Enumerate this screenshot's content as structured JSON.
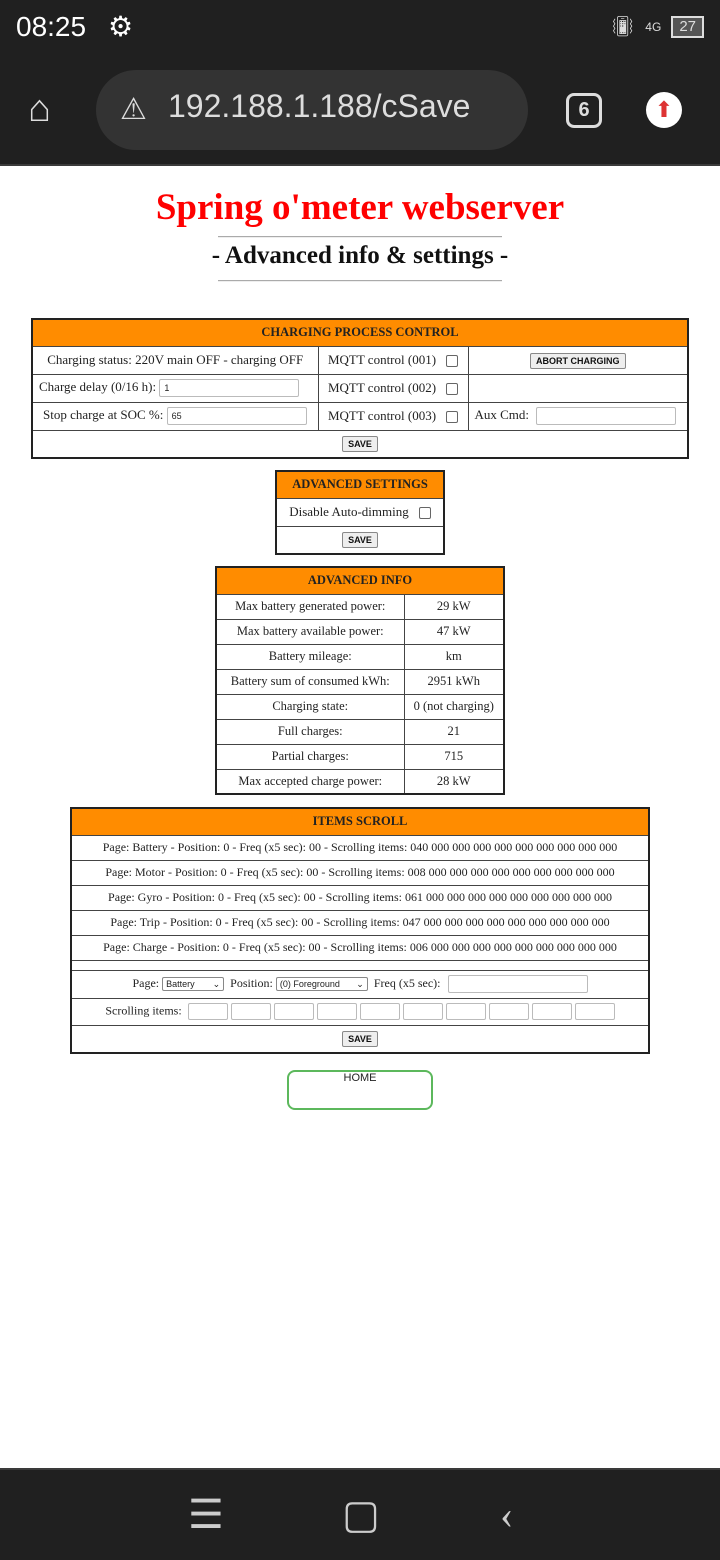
{
  "status": {
    "time": "08:25",
    "network": "4G",
    "battery": "27"
  },
  "browser": {
    "url": "192.188.1.188/cSave",
    "tab_count": "6"
  },
  "page": {
    "title": "Spring o'meter webserver",
    "subtitle": "- Advanced info & settings -"
  },
  "charging": {
    "header": "CHARGING PROCESS CONTROL",
    "status": "Charging status: 220V main OFF - charging OFF",
    "mqtt1": "MQTT control (001)",
    "mqtt2": "MQTT control (002)",
    "mqtt3": "MQTT control (003)",
    "abort": "ABORT CHARGING",
    "delay_label": "Charge delay (0/16 h):",
    "delay_value": "1",
    "soc_label": "Stop charge at SOC %:",
    "soc_value": "65",
    "aux_label": "Aux Cmd:",
    "aux_value": "",
    "save": "SAVE"
  },
  "advanced_settings": {
    "header": "ADVANCED SETTINGS",
    "autodim": "Disable Auto-dimming",
    "save": "SAVE"
  },
  "advanced_info": {
    "header": "ADVANCED INFO",
    "rows": [
      {
        "label": "Max battery generated power:",
        "value": "29 kW"
      },
      {
        "label": "Max battery available power:",
        "value": "47 kW"
      },
      {
        "label": "Battery mileage:",
        "value": "km"
      },
      {
        "label": "Battery sum of consumed kWh:",
        "value": "2951 kWh"
      },
      {
        "label": "Charging state:",
        "value": "0 (not charging)"
      },
      {
        "label": "Full charges:",
        "value": "21"
      },
      {
        "label": "Partial charges:",
        "value": "715"
      },
      {
        "label": "Max accepted charge power:",
        "value": "28 kW"
      }
    ]
  },
  "items_scroll": {
    "header": "ITEMS SCROLL",
    "rows": [
      "Page: Battery - Position: 0 - Freq (x5 sec): 00 - Scrolling items: 040 000 000 000 000 000 000 000 000 000",
      "Page: Motor - Position: 0 - Freq (x5 sec): 00 - Scrolling items: 008 000 000 000 000 000 000 000 000 000",
      "Page: Gyro - Position: 0 - Freq (x5 sec): 00 - Scrolling items: 061 000 000 000 000 000 000 000 000 000",
      "Page: Trip - Position: 0 - Freq (x5 sec): 00 - Scrolling items: 047 000 000 000 000 000 000 000 000 000",
      "Page: Charge - Position: 0 - Freq (x5 sec): 00 - Scrolling items: 006 000 000 000 000 000 000 000 000 000"
    ],
    "page_label": "Page:",
    "page_value": "Battery",
    "position_label": "Position:",
    "position_value": "(0) Foreground",
    "freq_label": "Freq (x5 sec):",
    "freq_value": "",
    "items_label": "Scrolling items:",
    "save": "SAVE"
  },
  "home_button": "HOME"
}
